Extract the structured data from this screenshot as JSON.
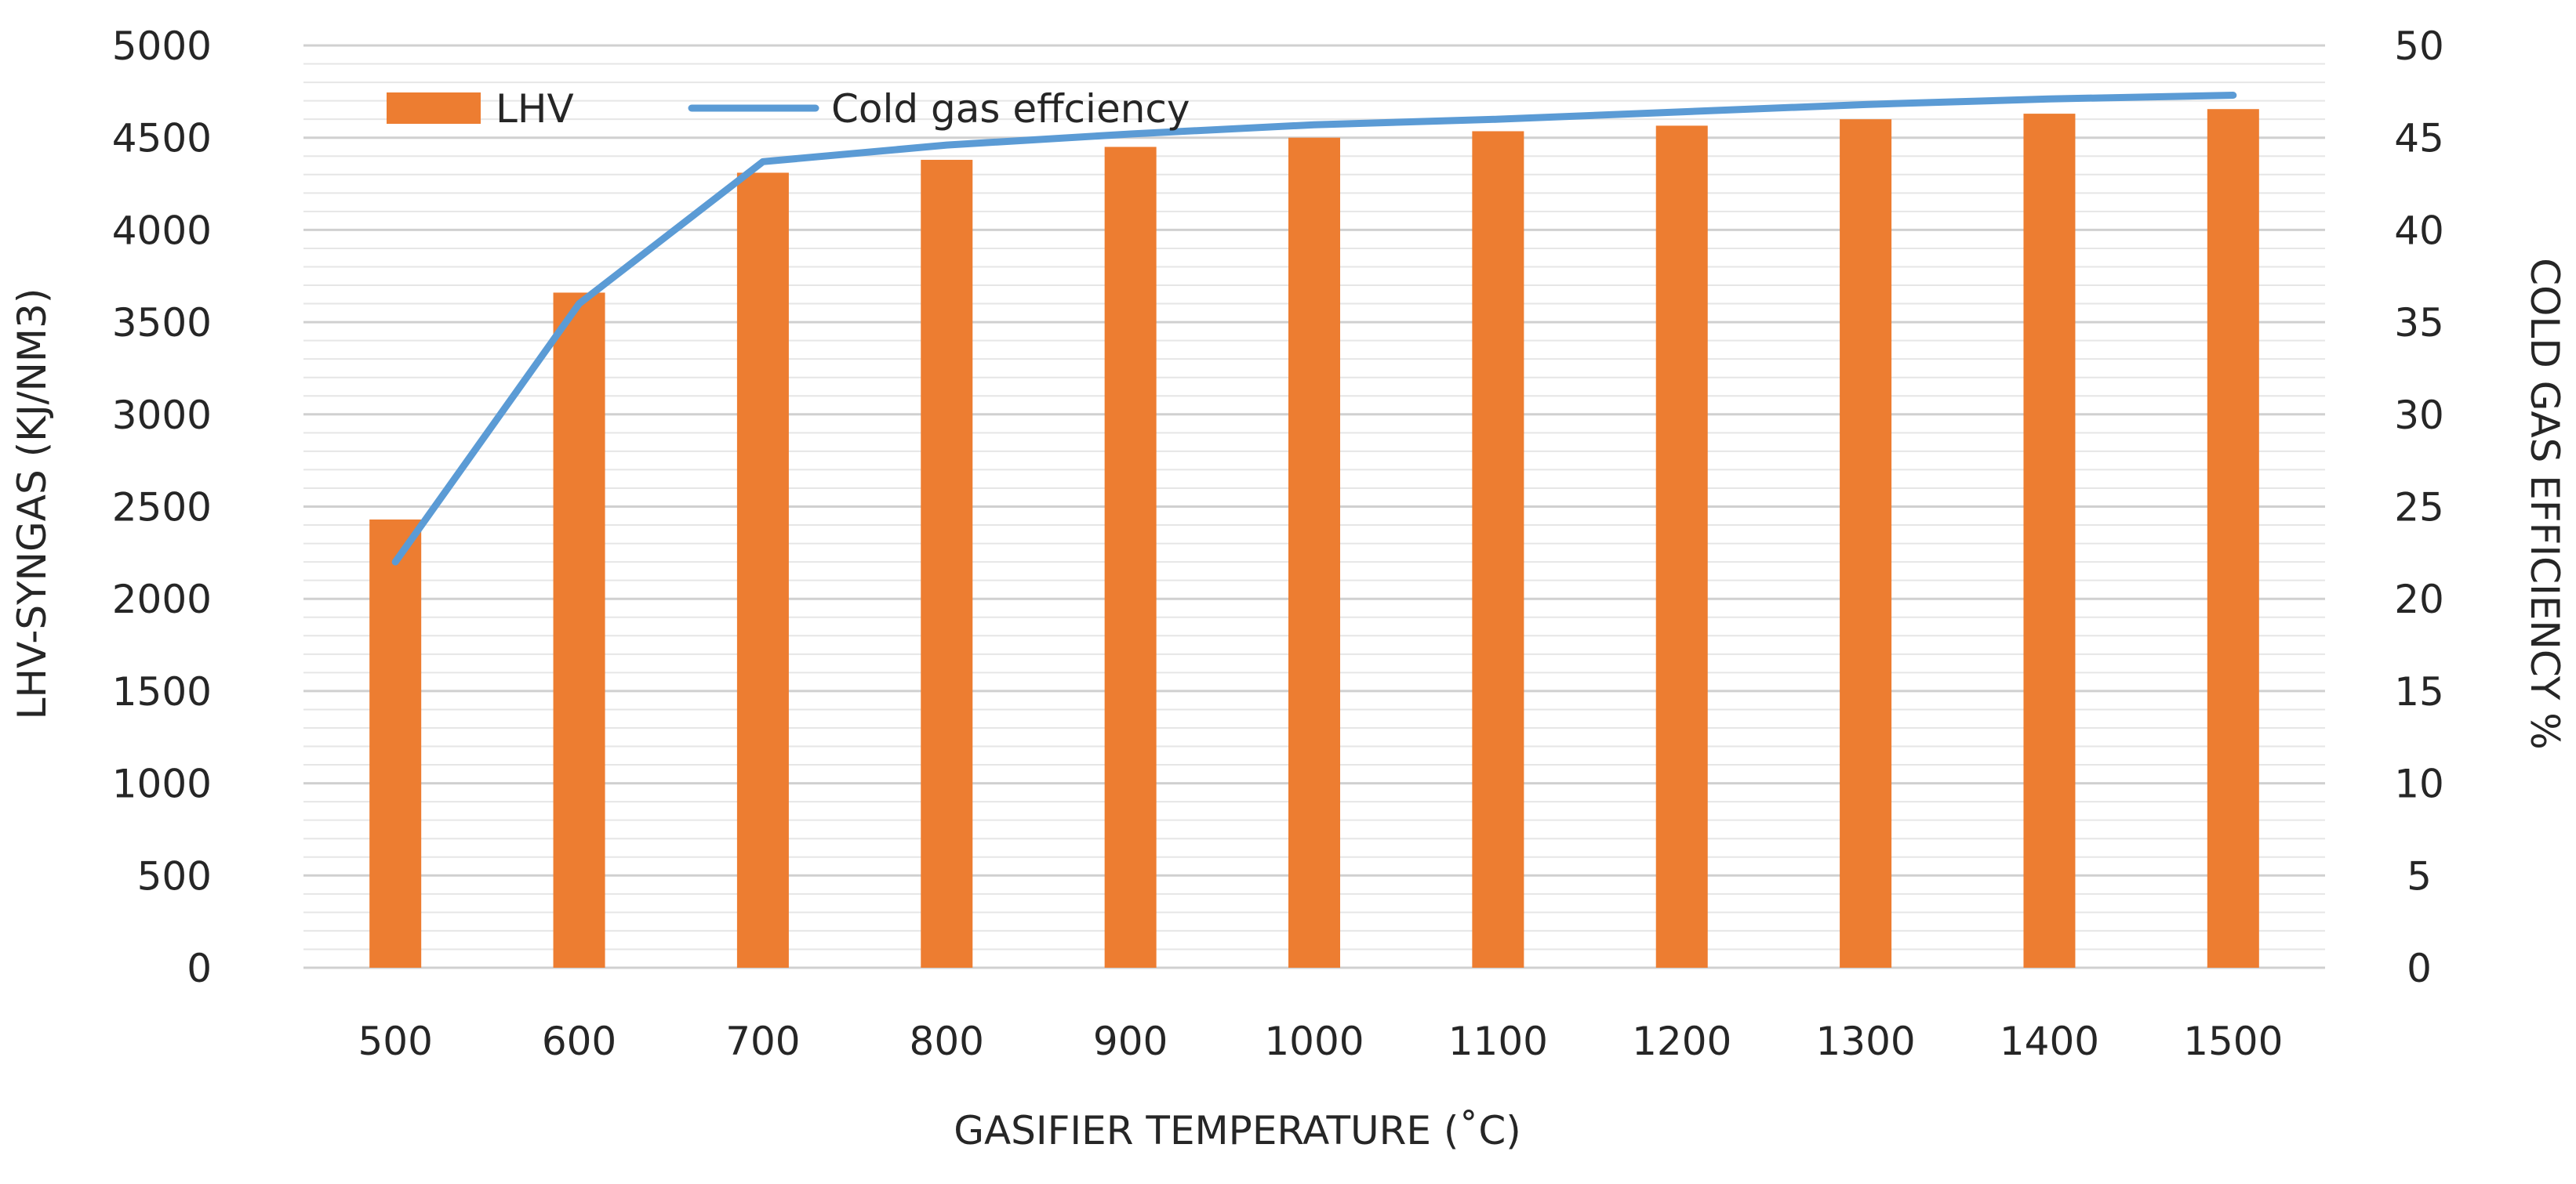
{
  "chart_data": {
    "type": "bar+line",
    "categories": [
      "500",
      "600",
      "700",
      "800",
      "900",
      "1000",
      "1100",
      "1200",
      "1300",
      "1400",
      "1500"
    ],
    "series": [
      {
        "name": "LHV",
        "kind": "bar",
        "axis": "left",
        "color": "#ED7D31",
        "values": [
          2430,
          3660,
          4310,
          4380,
          4450,
          4500,
          4535,
          4565,
          4600,
          4630,
          4655
        ]
      },
      {
        "name": "Cold gas effciency",
        "kind": "line",
        "axis": "right",
        "color": "#5B9BD5",
        "values": [
          22,
          36,
          43.7,
          44.6,
          45.2,
          45.7,
          46.0,
          46.4,
          46.8,
          47.1,
          47.3
        ]
      }
    ],
    "xlabel": "GASIFIER TEMPERATURE (˚C)",
    "ylabel": "LHV-SYNGAS (KJ/NM3)",
    "y2label": "COLD GAS EFFICIENCY %",
    "ylim": [
      0,
      5000
    ],
    "y2lim": [
      0,
      50
    ],
    "yticks": [
      "0",
      "500",
      "1000",
      "1500",
      "2000",
      "2500",
      "3000",
      "3500",
      "4000",
      "4500",
      "5000"
    ],
    "y2ticks": [
      "0",
      "5",
      "10",
      "15",
      "20",
      "25",
      "30",
      "35",
      "40",
      "45",
      "50"
    ],
    "legend": "top-left",
    "grid": true
  }
}
